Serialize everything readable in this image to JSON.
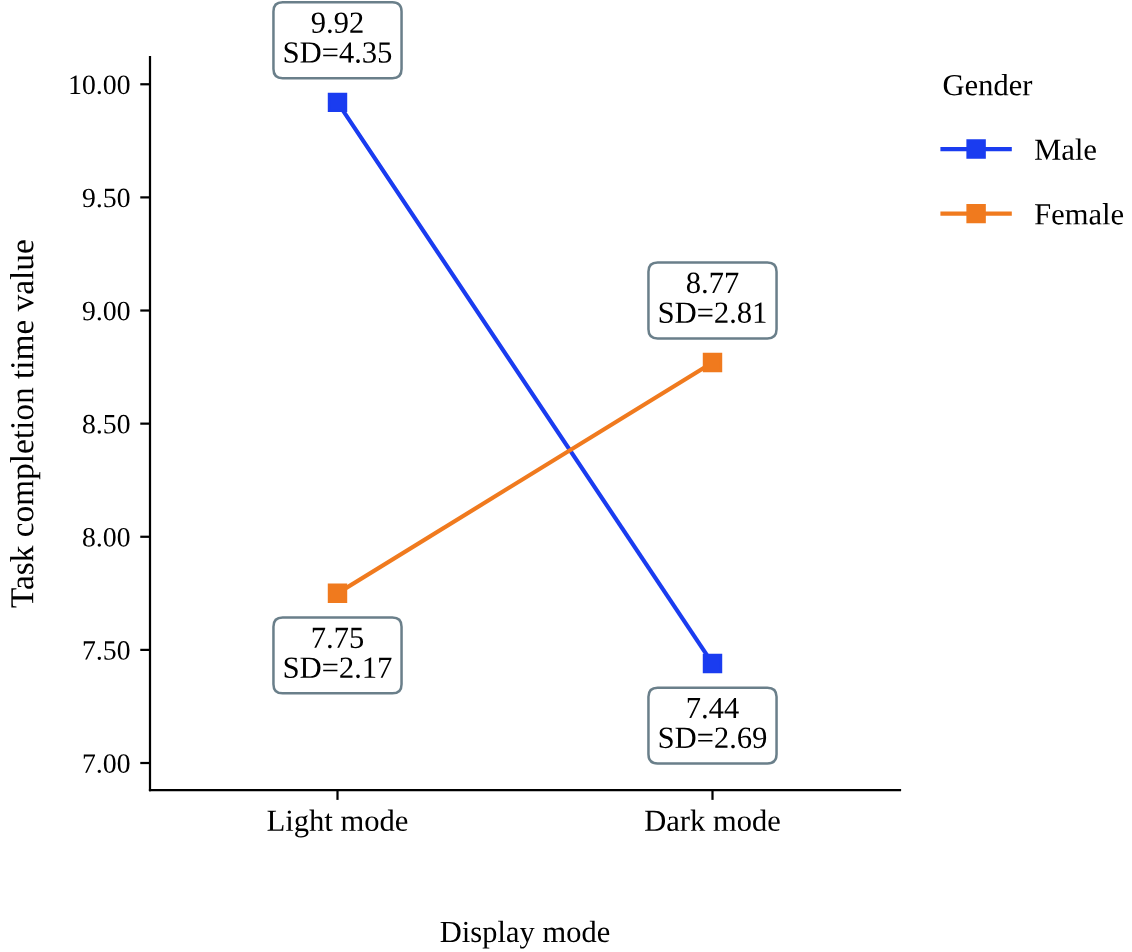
{
  "chart_data": {
    "type": "line",
    "xlabel": "Display mode",
    "ylabel": "Task completion time value",
    "legend_title": "Gender",
    "categories": [
      "Light mode",
      "Dark mode"
    ],
    "series": [
      {
        "name": "Male",
        "color": "#1a3cf0",
        "values": [
          9.92,
          7.44
        ]
      },
      {
        "name": "Female",
        "color": "#f07a1e",
        "values": [
          7.75,
          8.77
        ]
      }
    ],
    "ylim": [
      6.88,
      10.12
    ],
    "yticks": [
      {
        "value": 7,
        "label": "7.00"
      },
      {
        "value": 7.5,
        "label": "7.50"
      },
      {
        "value": 8,
        "label": "8.00"
      },
      {
        "value": 8.5,
        "label": "8.50"
      },
      {
        "value": 9,
        "label": "9.00"
      },
      {
        "value": 9.5,
        "label": "9.50"
      },
      {
        "value": 10,
        "label": "10.00"
      }
    ],
    "annotations": [
      {
        "text": "9.92\nSD=4.35",
        "x": "Light mode",
        "y": 9.92
      },
      {
        "text": "7.44\nSD=2.69",
        "x": "Dark mode",
        "y": 7.44
      },
      {
        "text": "7.75\nSD=2.17",
        "x": "Light mode",
        "y": 7.75
      },
      {
        "text": "8.77\nSD=2.81",
        "x": "Dark mode",
        "y": 8.77
      }
    ],
    "marker": "square",
    "line_style": "solid",
    "legend": "right",
    "grid": false
  }
}
